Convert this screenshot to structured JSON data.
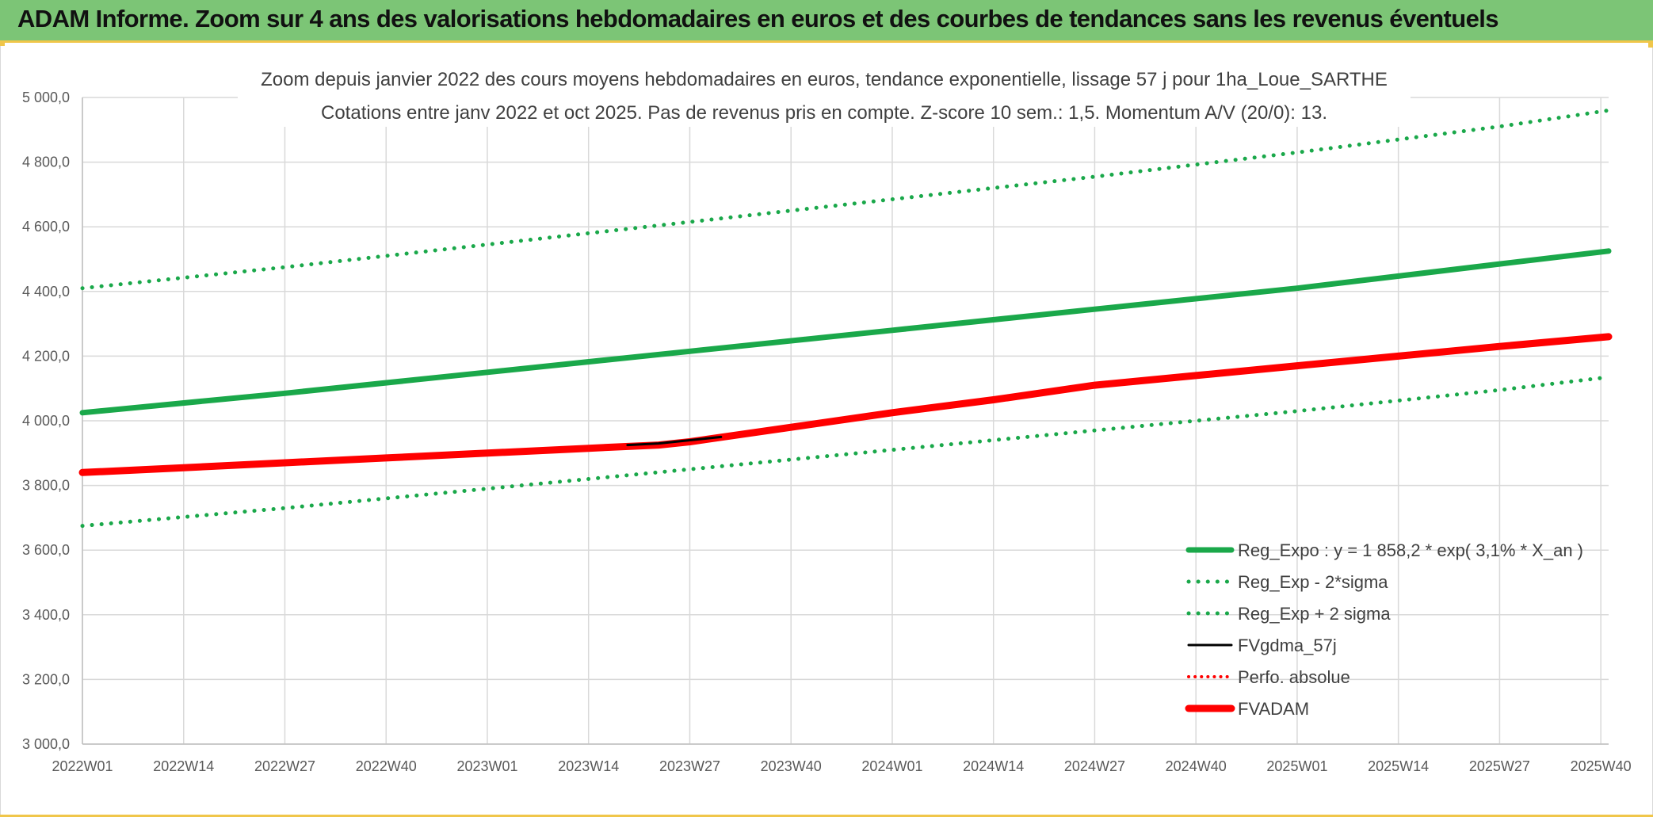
{
  "header": {
    "title": "ADAM Informe. Zoom sur 4 ans des valorisations hebdomadaires en euros et des courbes de tendances sans les revenus éventuels"
  },
  "colors": {
    "header_bg": "#7cc576",
    "accent_yellow": "#f0c64a",
    "trend_green": "#1aa84a",
    "fvadam_red": "#ff0000",
    "fvgdma_black": "#000000"
  },
  "chart_data": {
    "type": "line",
    "title": "Zoom depuis janvier 2022 des cours moyens hebdomadaires en euros, tendance exponentielle, lissage 57 j pour 1ha_Loue_SARTHE",
    "subtitle": "Cotations entre janv 2022 et oct 2025. Pas de revenus pris en compte. Z-score 10 sem.: 1,5. Momentum A/V (20/0): 13.",
    "xlabel": "",
    "ylabel": "",
    "ylim": [
      3000,
      5000
    ],
    "yticks": [
      "3 000,0",
      "3 200,0",
      "3 400,0",
      "3 600,0",
      "3 800,0",
      "4 000,0",
      "4 200,0",
      "4 400,0",
      "4 600,0",
      "4 800,0",
      "5 000,0"
    ],
    "x_range_weeks": [
      0,
      196
    ],
    "xtick_positions": [
      0,
      13,
      26,
      39,
      52,
      65,
      78,
      91,
      104,
      117,
      130,
      143,
      156,
      169,
      182,
      195
    ],
    "xtick_labels": [
      "2022W01",
      "2022W14",
      "2022W27",
      "2022W40",
      "2023W01",
      "2023W14",
      "2023W27",
      "2023W40",
      "2024W01",
      "2024W14",
      "2024W27",
      "2024W40",
      "2025W01",
      "2025W14",
      "2025W27",
      "2025W40"
    ],
    "grid": true,
    "legend_position": "bottom-right",
    "series": [
      {
        "name": "Reg_Expo : y = 1 858,2 * exp( 3,1% *  X_an )",
        "style": "solid",
        "color": "#1aa84a",
        "x": [
          0,
          26,
          52,
          78,
          104,
          130,
          156,
          182,
          196
        ],
        "y": [
          4025,
          4085,
          4150,
          4215,
          4280,
          4345,
          4410,
          4485,
          4525
        ]
      },
      {
        "name": "Reg_Exp - 2*sigma",
        "style": "dotted",
        "color": "#1aa84a",
        "x": [
          0,
          26,
          52,
          78,
          104,
          130,
          156,
          182,
          196
        ],
        "y": [
          3675,
          3730,
          3790,
          3850,
          3910,
          3970,
          4030,
          4095,
          4135
        ]
      },
      {
        "name": "Reg_Exp + 2 sigma",
        "style": "dotted",
        "color": "#1aa84a",
        "x": [
          0,
          26,
          52,
          78,
          104,
          130,
          156,
          182,
          196
        ],
        "y": [
          4410,
          4475,
          4545,
          4615,
          4685,
          4755,
          4830,
          4910,
          4960
        ]
      },
      {
        "name": "FVgdma_57j",
        "style": "solid-thin",
        "color": "#000000",
        "x": [
          70,
          74,
          78,
          82
        ],
        "y": [
          3925,
          3930,
          3940,
          3950
        ]
      },
      {
        "name": "Perfo. absolue",
        "style": "dotted-red",
        "color": "#ff0000",
        "x": [],
        "y": []
      },
      {
        "name": "FVADAM",
        "style": "solid-thick",
        "color": "#ff0000",
        "x": [
          0,
          13,
          26,
          39,
          52,
          65,
          74,
          78,
          91,
          104,
          117,
          130,
          143,
          156,
          169,
          182,
          196
        ],
        "y": [
          3840,
          3855,
          3870,
          3885,
          3900,
          3915,
          3925,
          3935,
          3980,
          4025,
          4065,
          4110,
          4140,
          4170,
          4200,
          4230,
          4260
        ]
      }
    ]
  }
}
